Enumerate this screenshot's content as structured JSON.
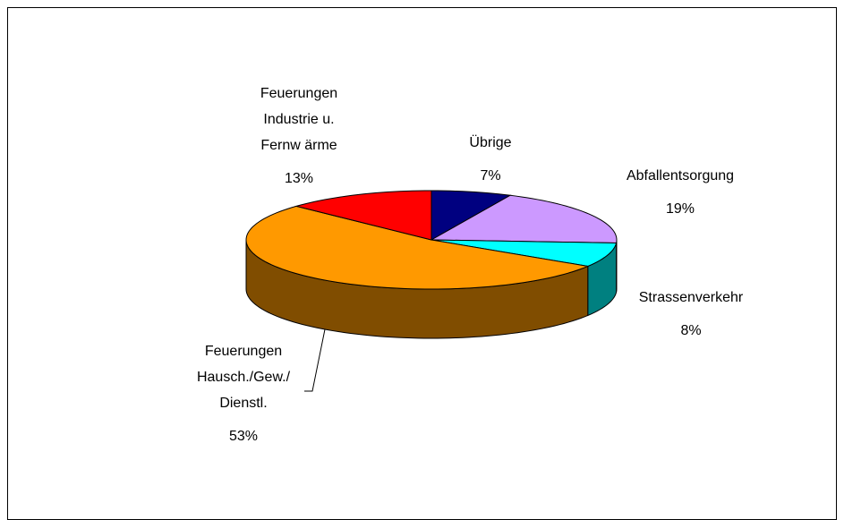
{
  "chart_data": {
    "type": "pie3d",
    "categories": [
      [
        "Übrige"
      ],
      [
        "Abfallentsorgung"
      ],
      [
        "Strassenverkehr"
      ],
      [
        "Feuerungen",
        "Hausch./Gew./",
        "Dienstl."
      ],
      [
        "Feuerungen",
        "Industrie u.",
        "Fernw ärme"
      ]
    ],
    "values": [
      7,
      19,
      8,
      53,
      13
    ],
    "value_labels": [
      "7%",
      "19%",
      "8%",
      "53%",
      "13%"
    ],
    "colors": [
      "#000080",
      "#cc99ff",
      "#00ffff",
      "#ff9900",
      "#ff0000"
    ]
  }
}
